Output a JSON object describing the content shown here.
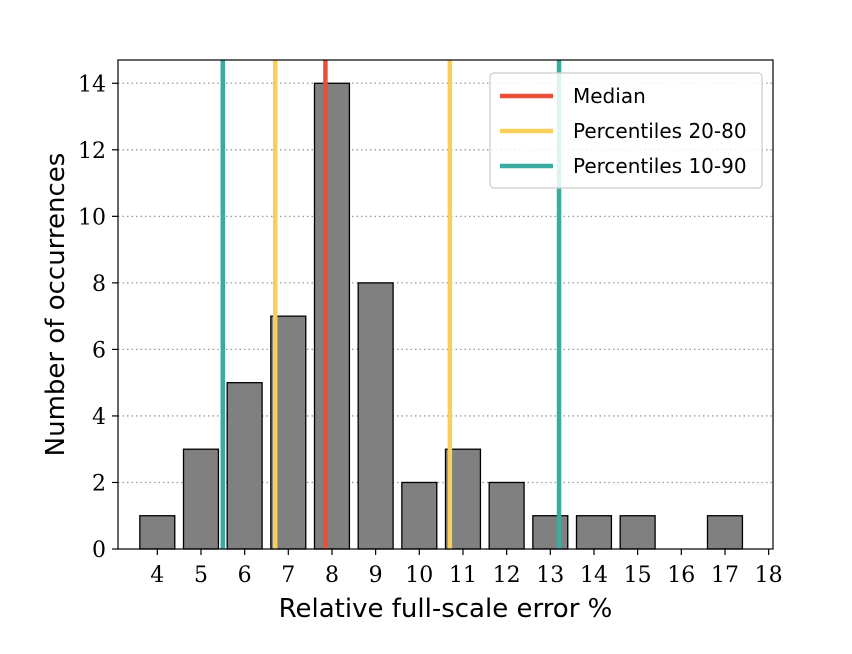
{
  "chart_data": {
    "type": "bar",
    "xlabel": "Relative full-scale error %",
    "ylabel": "Number of occurrences",
    "x": [
      4,
      5,
      6,
      7,
      8,
      9,
      10,
      11,
      12,
      13,
      14,
      15,
      16,
      17
    ],
    "values": [
      1,
      3,
      5,
      7,
      14,
      8,
      2,
      3,
      2,
      1,
      1,
      1,
      0,
      1
    ],
    "xlim": [
      3.1,
      18.1
    ],
    "ylim": [
      0,
      14.7
    ],
    "x_ticks": [
      "4",
      "5",
      "6",
      "7",
      "8",
      "9",
      "10",
      "11",
      "12",
      "13",
      "14",
      "15",
      "16",
      "17",
      "18"
    ],
    "y_ticks": [
      "0",
      "2",
      "4",
      "6",
      "8",
      "10",
      "12",
      "14"
    ],
    "grid": "horizontal-dotted",
    "bar_color": "#808080",
    "vertical_lines": [
      {
        "legend_ref": 0,
        "x": 7.85,
        "color": "#e8503a"
      },
      {
        "legend_ref": 1,
        "x": 6.7,
        "color": "#f9cf5a"
      },
      {
        "legend_ref": 1,
        "x": 10.7,
        "color": "#f9cf5a"
      },
      {
        "legend_ref": 2,
        "x": 5.5,
        "color": "#3aaba0"
      },
      {
        "legend_ref": 2,
        "x": 13.2,
        "color": "#3aaba0"
      }
    ],
    "legend": {
      "placement": "top-right",
      "entries": [
        {
          "label": "Median",
          "color": "#e8503a"
        },
        {
          "label": "Percentiles 20-80",
          "color": "#f9cf5a"
        },
        {
          "label": "Percentiles 10-90",
          "color": "#3aaba0"
        }
      ]
    }
  }
}
